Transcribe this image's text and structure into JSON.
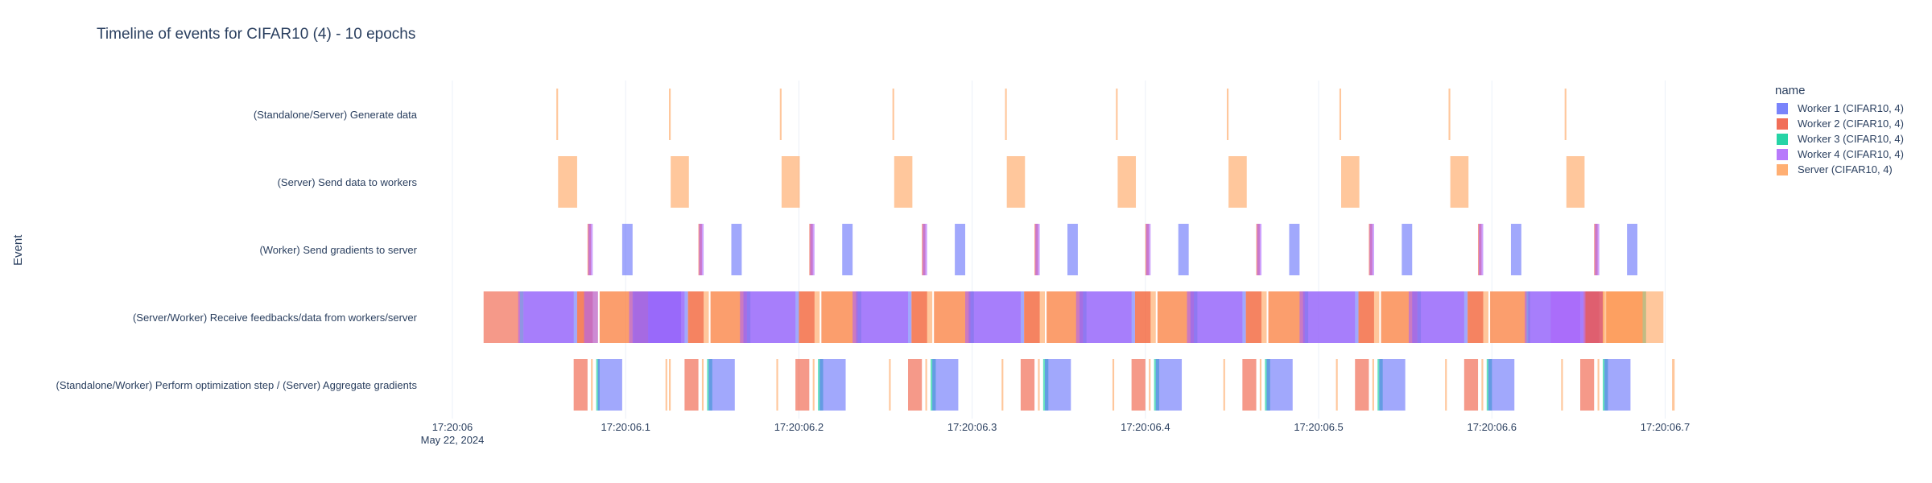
{
  "chart_data": {
    "type": "timeline",
    "title": "Timeline of events for CIFAR10 (4) - 10 epochs",
    "ylabel": "Event",
    "xlabel": "",
    "x_date_label": "May 22, 2024",
    "x_range": [
      "17:20:06.000",
      "17:20:06.710"
    ],
    "x_ticks": [
      "17:20:06",
      "17:20:06.1",
      "17:20:06.2",
      "17:20:06.3",
      "17:20:06.4",
      "17:20:06.5",
      "17:20:06.6",
      "17:20:06.7"
    ],
    "categories": [
      "(Standalone/Server) Generate data",
      "(Server) Send data to workers",
      "(Worker) Send gradients to server",
      "(Server/Worker) Receive feedbacks/data from workers/server",
      "(Standalone/Worker) Perform optimization step / (Server) Aggregate gradients"
    ],
    "legend_title": "name",
    "legend_position": "top-right",
    "grid": true,
    "series": [
      {
        "name": "Worker 1 (CIFAR10, 4)",
        "color": "#636efa"
      },
      {
        "name": "Worker 2 (CIFAR10, 4)",
        "color": "#ef553b"
      },
      {
        "name": "Worker 3 (CIFAR10, 4)",
        "color": "#00cc96"
      },
      {
        "name": "Worker 4 (CIFAR10, 4)",
        "color": "#ab63fa"
      },
      {
        "name": "Server (CIFAR10, 4)",
        "color": "#ffa15a"
      }
    ],
    "epoch_starts": [
      0.06,
      0.125,
      0.189,
      0.254,
      0.319,
      0.383,
      0.447,
      0.512,
      0.575,
      0.642
    ],
    "tasks": [
      {
        "series": 4,
        "category": 0,
        "start": 0.06,
        "end": 0.061
      },
      {
        "series": 4,
        "category": 1,
        "start": 0.061,
        "end": 0.072
      },
      {
        "series": 1,
        "category": 2,
        "start": 0.078,
        "end": 0.08
      },
      {
        "series": 3,
        "category": 2,
        "start": 0.0785,
        "end": 0.081
      },
      {
        "series": 0,
        "category": 2,
        "start": 0.098,
        "end": 0.104
      },
      {
        "series": 1,
        "category": 3,
        "start": 0.018,
        "end": 0.039
      },
      {
        "series": 2,
        "category": 3,
        "start": 0.039,
        "end": 0.041
      },
      {
        "series": 0,
        "category": 3,
        "start": 0.041,
        "end": 0.072
      },
      {
        "series": 3,
        "category": 3,
        "start": 0.038,
        "end": 0.07
      },
      {
        "series": 4,
        "category": 3,
        "start": 0.072,
        "end": 0.084
      },
      {
        "series": 1,
        "category": 3,
        "start": 0.072,
        "end": 0.081
      },
      {
        "series": 3,
        "category": 3,
        "start": 0.076,
        "end": 0.084
      },
      {
        "series": 1,
        "category": 3,
        "start": 0.085,
        "end": 0.105
      },
      {
        "series": 4,
        "category": 3,
        "start": 0.085,
        "end": 0.105
      },
      {
        "series": 4,
        "category": 3,
        "start": 0.105,
        "end": 0.113
      },
      {
        "series": 1,
        "category": 3,
        "start": 0.105,
        "end": 0.113
      },
      {
        "series": 0,
        "category": 3,
        "start": 0.113,
        "end": 0.132
      },
      {
        "series": 3,
        "category": 3,
        "start": 0.113,
        "end": 0.132
      },
      {
        "series": 1,
        "category": 4,
        "start": 0.07,
        "end": 0.078
      },
      {
        "series": 4,
        "category": 4,
        "start": 0.08,
        "end": 0.081
      },
      {
        "series": 2,
        "category": 4,
        "start": 0.083,
        "end": 0.085
      },
      {
        "series": 0,
        "category": 4,
        "start": 0.084,
        "end": 0.098
      },
      {
        "series": 4,
        "category": 4,
        "start": 0.125,
        "end": 0.126
      },
      {
        "series": 4,
        "category": 4,
        "start": 0.704,
        "end": 0.7055
      }
    ]
  }
}
